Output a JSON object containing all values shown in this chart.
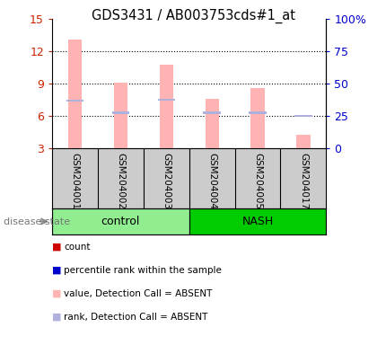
{
  "title": "GDS3431 / AB003753cds#1_at",
  "samples": [
    "GSM204001",
    "GSM204002",
    "GSM204003",
    "GSM204004",
    "GSM204005",
    "GSM204017"
  ],
  "groups": [
    "control",
    "control",
    "control",
    "NASH",
    "NASH",
    "NASH"
  ],
  "bar_tops": [
    13.1,
    9.1,
    10.8,
    7.6,
    8.6,
    4.3
  ],
  "rank_markers": [
    7.4,
    6.3,
    7.5,
    6.3,
    6.3,
    6.0
  ],
  "bar_bottom": 3.0,
  "ylim_left": [
    3,
    15
  ],
  "ylim_right": [
    0,
    100
  ],
  "yticks_left": [
    3,
    6,
    9,
    12,
    15
  ],
  "yticks_right": [
    0,
    25,
    50,
    75,
    100
  ],
  "ytick_labels_right": [
    "0",
    "25",
    "50",
    "75",
    "100%"
  ],
  "bar_color_absent": "#FFB3B3",
  "rank_color_absent": "#B0B0DD",
  "group_colors": {
    "control": "#90EE90",
    "NASH": "#00CC00"
  },
  "control_label": "control",
  "nash_label": "NASH",
  "disease_state_label": "disease state",
  "legend_colors": [
    "#CC0000",
    "#0000CC",
    "#FFB3B3",
    "#B0B0DD"
  ],
  "legend_labels": [
    "count",
    "percentile rank within the sample",
    "value, Detection Call = ABSENT",
    "rank, Detection Call = ABSENT"
  ],
  "grid_linestyle": "dotted",
  "left_axis_color": "#CC2200",
  "right_axis_color": "#0000CC",
  "sample_box_color": "#CCCCCC",
  "bar_width": 0.3
}
